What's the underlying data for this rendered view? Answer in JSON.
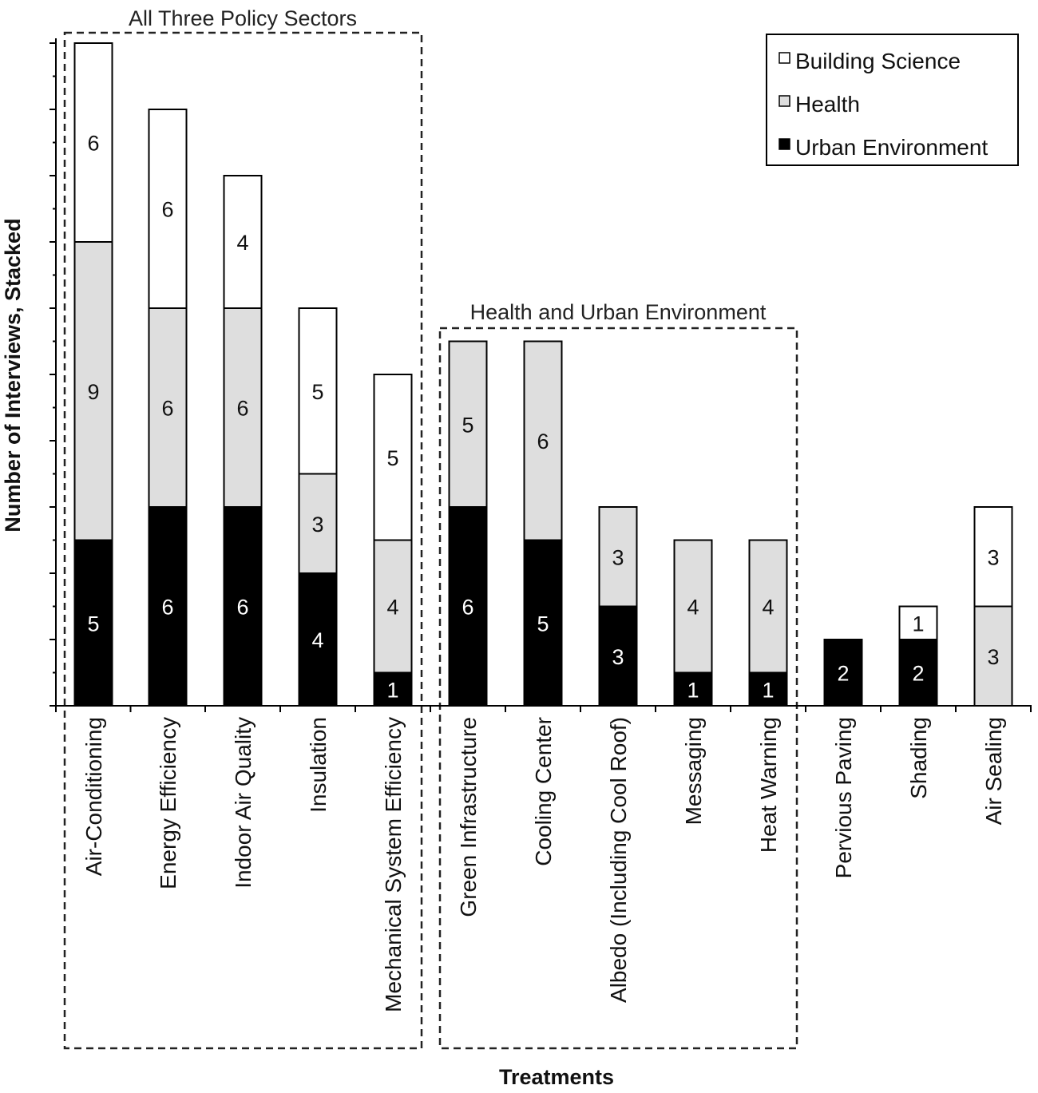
{
  "chart_data": {
    "type": "bar",
    "stacked": true,
    "categories": [
      "Air-Conditioning",
      "Energy Efficiency",
      "Indoor Air Quality",
      "Insulation",
      "Mechanical System Efficiency",
      "Green Infrastructure",
      "Cooling Center",
      "Albedo (Including Cool Roof)",
      "Messaging",
      "Heat Warning",
      "Pervious Paving",
      "Shading",
      "Air Sealing"
    ],
    "series": [
      {
        "name": "Urban Environment",
        "color": "#000000",
        "values": [
          5,
          6,
          6,
          4,
          1,
          6,
          5,
          3,
          1,
          1,
          2,
          2,
          0
        ]
      },
      {
        "name": "Health",
        "color": "#dedede",
        "values": [
          9,
          6,
          6,
          3,
          4,
          5,
          6,
          3,
          4,
          4,
          0,
          0,
          3
        ]
      },
      {
        "name": "Building Science",
        "color": "#ffffff",
        "values": [
          6,
          6,
          4,
          5,
          5,
          0,
          0,
          0,
          0,
          0,
          0,
          1,
          3
        ]
      }
    ],
    "xlabel": "Treatments",
    "ylabel": "Number of Interviews, Stacked",
    "ylim": [
      0,
      20
    ],
    "legend_position": "top-right",
    "groups": [
      {
        "label": "All Three Policy Sectors",
        "start": 0,
        "end": 4
      },
      {
        "label": "Health and Urban Environment",
        "start": 5,
        "end": 9
      }
    ]
  }
}
